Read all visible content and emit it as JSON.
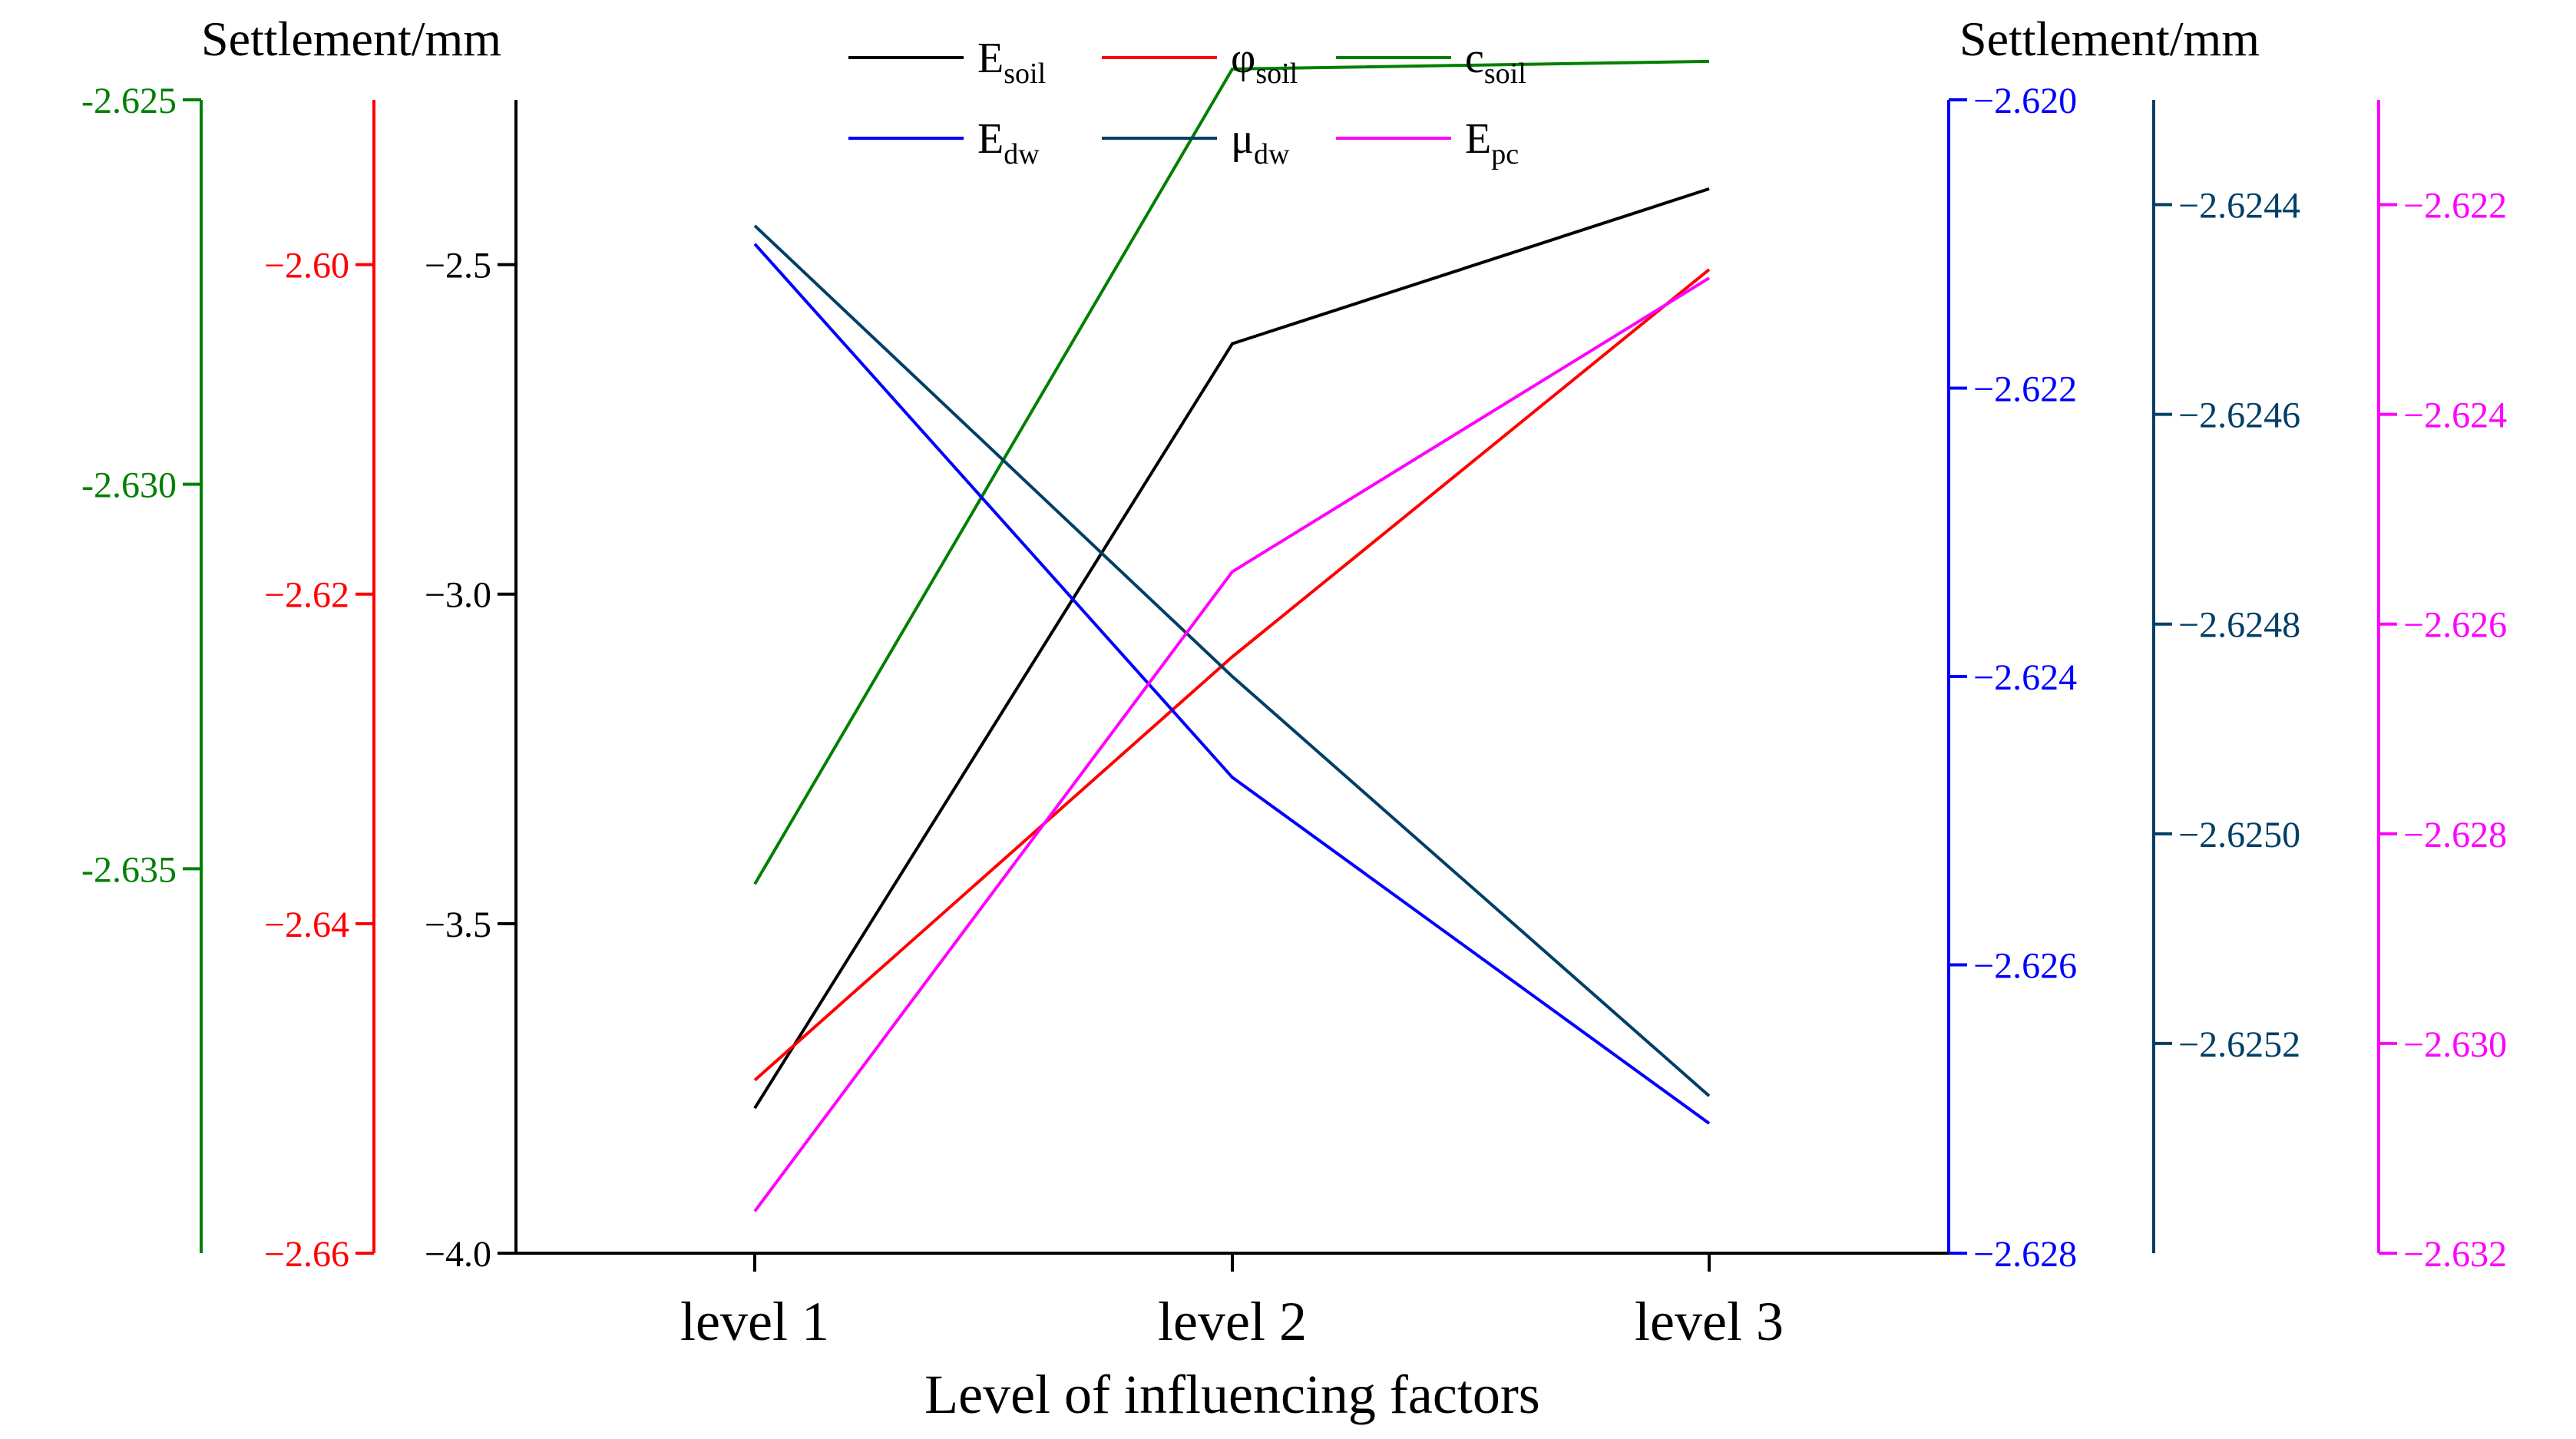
{
  "chart_data": {
    "type": "line",
    "categories": [
      "level 1",
      "level 2",
      "level 3"
    ],
    "xlabel": "Level of influencing factors",
    "left_title": "Settlement/mm",
    "right_title": "Settlement/mm",
    "axes": [
      {
        "id": "c_soil_axis",
        "color": "#008000",
        "range": [
          -2.64,
          -2.625
        ],
        "ticks": [
          -2.625,
          -2.63,
          -2.635
        ],
        "labels": [
          "-2.625",
          "-2.630",
          "-2.635"
        ],
        "minor": true
      },
      {
        "id": "phi_soil_axis",
        "color": "#ff0000",
        "range": [
          -2.66,
          -2.59
        ],
        "ticks": [
          -2.6,
          -2.62,
          -2.64,
          -2.66
        ],
        "labels": [
          "−2.60",
          "−2.62",
          "−2.64",
          "−2.66"
        ],
        "minor": true
      },
      {
        "id": "e_soil_axis",
        "color": "#000000",
        "range": [
          -4.0,
          -2.25
        ],
        "ticks": [
          -2.5,
          -3.0,
          -3.5,
          -4.0
        ],
        "labels": [
          "−2.5",
          "−3.0",
          "−3.5",
          "−4.0"
        ],
        "minor": true
      },
      {
        "id": "e_dw_axis",
        "color": "#0000ff",
        "range": [
          -2.628,
          -2.62
        ],
        "ticks": [
          -2.62,
          -2.622,
          -2.624,
          -2.626,
          -2.628
        ],
        "labels": [
          "−2.620",
          "−2.622",
          "−2.624",
          "−2.626",
          "−2.628"
        ],
        "minor": true
      },
      {
        "id": "mu_dw_axis",
        "color": "#003f66",
        "range": [
          -2.6254,
          -2.6243
        ],
        "ticks": [
          -2.6244,
          -2.6246,
          -2.6248,
          -2.625,
          -2.6252
        ],
        "labels": [
          "−2.6244",
          "−2.6246",
          "−2.6248",
          "−2.6250",
          "−2.6252"
        ],
        "minor": false
      },
      {
        "id": "e_pc_axis",
        "color": "#ff00ff",
        "range": [
          -2.632,
          -2.621
        ],
        "ticks": [
          -2.622,
          -2.624,
          -2.626,
          -2.628,
          -2.63,
          -2.632
        ],
        "labels": [
          "−2.622",
          "−2.624",
          "−2.626",
          "−2.628",
          "−2.630",
          "−2.632"
        ],
        "minor": true
      }
    ],
    "series": [
      {
        "name": "E",
        "sub": "soil",
        "color": "#000000",
        "axis": "e_soil_axis",
        "values": [
          -3.78,
          -2.62,
          -2.385
        ]
      },
      {
        "name": "φ",
        "sub": "soil",
        "color": "#ff0000",
        "axis": "phi_soil_axis",
        "values": [
          -2.6495,
          -2.6238,
          -2.6003
        ]
      },
      {
        "name": "c",
        "sub": "soil",
        "color": "#008000",
        "axis": "c_soil_axis",
        "values": [
          -2.6352,
          -2.6246,
          -2.6245
        ]
      },
      {
        "name": "E",
        "sub": "dw",
        "color": "#0000ff",
        "axis": "e_dw_axis",
        "values": [
          -2.621,
          -2.6247,
          -2.6271
        ]
      },
      {
        "name": "μ",
        "sub": "dw",
        "color": "#003f66",
        "axis": "mu_dw_axis",
        "values": [
          -2.62442,
          -2.62485,
          -2.62525
        ]
      },
      {
        "name": "E",
        "sub": "pc",
        "color": "#ff00ff",
        "axis": "e_pc_axis",
        "values": [
          -2.6316,
          -2.6255,
          -2.6227
        ]
      }
    ]
  }
}
